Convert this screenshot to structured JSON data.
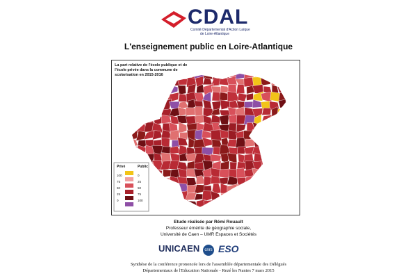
{
  "header": {
    "logo": "CDAL",
    "organization": [
      "Comité Départemental d'Action Laïque",
      "de Loire-Atlantique"
    ],
    "title": "L'enseignement public en Loire-Atlantique"
  },
  "map": {
    "title": [
      "La part relative de l'école publique et de",
      "l'école privée dans la commune de",
      "scolarisation en 2015-2016"
    ],
    "legend": {
      "left_heading": "Privé",
      "right_heading": "Public",
      "left_labels": [
        "100",
        "75",
        "50",
        "25",
        "0"
      ],
      "right_labels": [
        "0",
        "25",
        "50",
        "75",
        "100"
      ]
    }
  },
  "credits": [
    "Etude réalisée par Rémi Rouault",
    "Professeur émérite de géographie sociale,",
    "Université de Caen – UMR Espaces et Sociétés"
  ],
  "logos": [
    "UNICAEN",
    "cnrs",
    "ESO"
  ],
  "footer": [
    "Synthèse de la conférence prononcée lors de l'assemblée départementale des Délégués",
    "Départementaux de l'Education Nationale - Rezé les Nantes 7 mars 2015"
  ]
}
